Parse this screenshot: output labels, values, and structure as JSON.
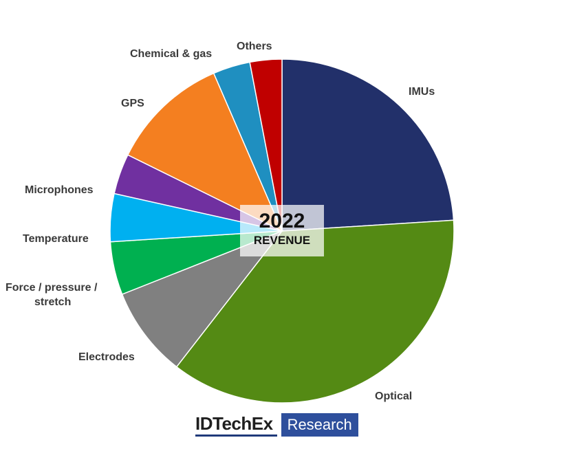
{
  "chart_data": {
    "type": "pie",
    "title": "2022",
    "subtitle": "REVENUE",
    "slices": [
      {
        "label": "IMUs",
        "value": 24.0,
        "color": "#22306a"
      },
      {
        "label": "Optical",
        "value": 36.5,
        "color": "#548a14"
      },
      {
        "label": "Electrodes",
        "value": 8.5,
        "color": "#808080"
      },
      {
        "label": "Force / pressure / stretch",
        "value": 5.0,
        "color": "#00b050"
      },
      {
        "label": "Temperature",
        "value": 4.5,
        "color": "#00b0f0"
      },
      {
        "label": "Microphones",
        "value": 3.8,
        "color": "#7030a0"
      },
      {
        "label": "GPS",
        "value": 11.2,
        "color": "#f47f20"
      },
      {
        "label": "Chemical & gas",
        "value": 3.5,
        "color": "#1f8fc0"
      },
      {
        "label": "Others",
        "value": 3.0,
        "color": "#c00000"
      }
    ]
  },
  "labels": {
    "imus": "IMUs",
    "optical": "Optical",
    "electrodes": "Electrodes",
    "force_line1": "Force / pressure /",
    "force_line2": "stretch",
    "temperature": "Temperature",
    "microphones": "Microphones",
    "gps": "GPS",
    "chemical": "Chemical & gas",
    "others": "Others"
  },
  "center": {
    "year": "2022",
    "caption": "REVENUE"
  },
  "logo": {
    "name": "IDTechEx",
    "tag": "Research"
  }
}
